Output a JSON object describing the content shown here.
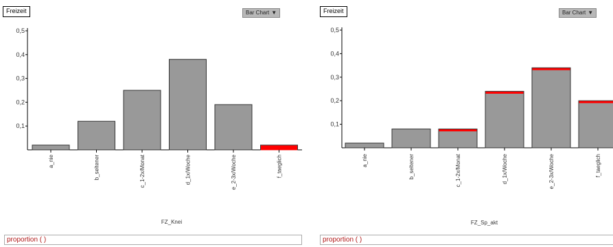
{
  "panels": [
    {
      "title": "Freizeit",
      "chart_type_label": "Bar Chart",
      "footer": "proportion ( )"
    },
    {
      "title": "Freizeit",
      "chart_type_label": "Bar Chart",
      "footer": "proportion ( )"
    }
  ],
  "chart_data": [
    {
      "type": "bar",
      "title": "",
      "xlabel": "FZ_Knei",
      "ylabel": "",
      "categories": [
        "a_nie",
        "b_seltener",
        "c_1-2x/Monat",
        "d_1x/Woche",
        "e_2-3x/Woche",
        "f_taeglich"
      ],
      "values": [
        0.02,
        0.12,
        0.25,
        0.38,
        0.19,
        0.02
      ],
      "highlight": [
        0,
        0,
        0,
        0,
        0,
        0.02
      ],
      "yticks": [
        "0,1",
        "0,2",
        "0,3",
        "0,4",
        "0,5"
      ],
      "ylim": [
        0,
        0.5
      ],
      "grid": false,
      "colors": {
        "bar": "#999999",
        "highlight": "#ff0000"
      }
    },
    {
      "type": "bar",
      "title": "",
      "xlabel": "FZ_Sp_akt",
      "ylabel": "",
      "categories": [
        "a_nie",
        "b_seltener",
        "c_1-2x/Monat",
        "d_1x/Woche",
        "e_2-3x/Woche",
        "f_taeglich"
      ],
      "values": [
        0.02,
        0.08,
        0.08,
        0.24,
        0.34,
        0.2
      ],
      "highlight": [
        0,
        0,
        0.005,
        0.005,
        0.005,
        0.005
      ],
      "yticks": [
        "0,1",
        "0,2",
        "0,3",
        "0,4",
        "0,5"
      ],
      "ylim": [
        0,
        0.5
      ],
      "grid": false,
      "colors": {
        "bar": "#999999",
        "highlight": "#ff0000"
      }
    }
  ]
}
